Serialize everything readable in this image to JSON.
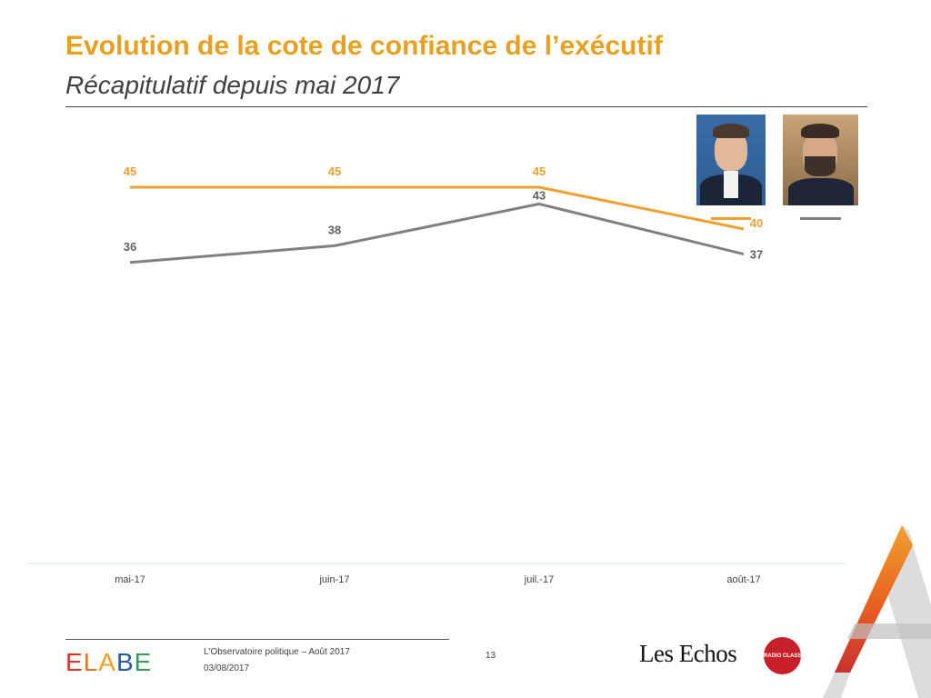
{
  "header": {
    "title": "Evolution de la cote de confiance de l’exécutif",
    "subtitle": "Récapitulatif depuis mai 2017"
  },
  "legend": {
    "placement": "top-right",
    "items": [
      {
        "depiction": "portrait photo",
        "color": "#f0a030"
      },
      {
        "depiction": "portrait photo",
        "color": "#808080"
      }
    ]
  },
  "chart_data": {
    "type": "line",
    "categories": [
      "mai-17",
      "juin-17",
      "juil.-17",
      "août-17"
    ],
    "series": [
      {
        "values": [
          45,
          45,
          45,
          40
        ],
        "color": "#f0a030"
      },
      {
        "values": [
          36,
          38,
          43,
          37
        ],
        "color": "#808080"
      }
    ],
    "xlabel": "",
    "ylabel": "",
    "ylim": [
      0,
      60
    ],
    "grid": false,
    "data_labels": true
  },
  "footer": {
    "brand": "ELABE",
    "report": "L'Observatoire politique – Août 2017",
    "date": "03/08/2017",
    "page": "13",
    "partner": "Les Echos",
    "radio_logo_text": "RADIO CLASSIQUE"
  },
  "colors": {
    "title": "#e8a020",
    "accent_orange": "#f0a030",
    "accent_gray": "#808080"
  }
}
